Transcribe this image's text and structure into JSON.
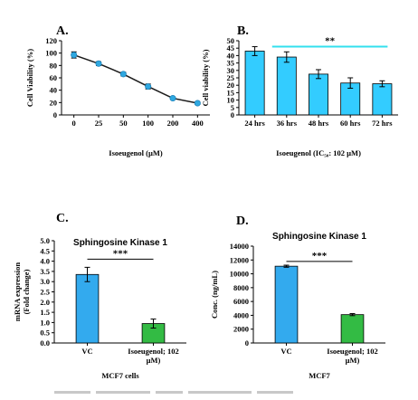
{
  "chart_data": [
    {
      "panel": "A.",
      "type": "line",
      "xlabel": "Isoeugenol (µM)",
      "ylabel": "Cell Viability (%)",
      "categories": [
        "0",
        "25",
        "50",
        "100",
        "200",
        "400"
      ],
      "values": [
        97,
        83,
        66,
        46,
        27,
        19
      ],
      "errors": [
        5,
        3,
        3,
        4,
        2,
        2
      ],
      "ylim": [
        0,
        120
      ],
      "yticks": [
        "0",
        "20",
        "40",
        "60",
        "80",
        "100",
        "120"
      ],
      "marker_color": "#2fa8e0",
      "line_color": "#1a1a1a",
      "grid": false
    },
    {
      "panel": "B.",
      "type": "bar",
      "xlabel": "Isoeugenol (IC₅₀: 102 µM)",
      "ylabel": "Cell viability (%)",
      "categories": [
        "24 hrs",
        "36 hrs",
        "48 hrs",
        "60 hrs",
        "72 hrs"
      ],
      "values": [
        43,
        39,
        27.5,
        21.5,
        21
      ],
      "errors": [
        3,
        3.5,
        3,
        3.5,
        2
      ],
      "ylim": [
        0,
        50
      ],
      "yticks": [
        "0",
        "5",
        "10",
        "15",
        "20",
        "25",
        "30",
        "35",
        "40",
        "45",
        "50"
      ],
      "bar_color": "#33ccff",
      "significance": "**",
      "sig_line_color": "#33e0ee",
      "grid": false
    },
    {
      "panel": "C.",
      "type": "bar",
      "title": "Sphingosine Kinase 1",
      "xlabel": "MCF7 cells",
      "ylabel": "mRNA expression (Fold change)",
      "ylabel_lines": [
        "mRNA expression",
        "(Fold change)"
      ],
      "categories": [
        "VC",
        "Isoeugenol; 102 µM)"
      ],
      "category_lines": [
        [
          "VC"
        ],
        [
          "Isoeugenol; 102",
          "µM)"
        ]
      ],
      "values": [
        3.35,
        0.95
      ],
      "errors": [
        0.35,
        0.22
      ],
      "colors": [
        "#33aaee",
        "#33bb44"
      ],
      "ylim": [
        0,
        5
      ],
      "yticks": [
        "0.0",
        "0.5",
        "1.0",
        "1.5",
        "2.0",
        "2.5",
        "3.0",
        "3.5",
        "4.0",
        "4.5",
        "5.0"
      ],
      "significance": "***",
      "grid": false
    },
    {
      "panel": "D.",
      "type": "bar",
      "title": "Sphingosine Kinase 1",
      "xlabel": "MCF7",
      "ylabel": "Conc. (ng/mL)",
      "categories": [
        "VC",
        "Isoeugenol; 102 µM)"
      ],
      "category_lines": [
        [
          "VC"
        ],
        [
          "Isoeugenol; 102",
          "µM)"
        ]
      ],
      "values": [
        11100,
        4100
      ],
      "errors": [
        150,
        150
      ],
      "colors": [
        "#33aaee",
        "#33bb44"
      ],
      "ylim": [
        0,
        14000
      ],
      "yticks": [
        "0",
        "2000",
        "4000",
        "6000",
        "8000",
        "10000",
        "12000",
        "14000"
      ],
      "significance": "***",
      "grid": false
    }
  ]
}
